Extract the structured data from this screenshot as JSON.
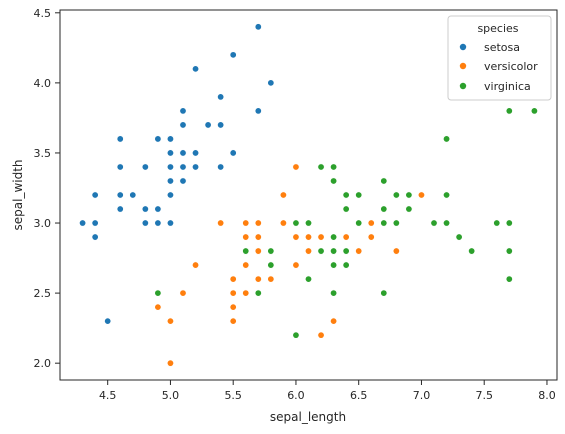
{
  "chart_data": {
    "type": "scatter",
    "title": "",
    "xlabel": "sepal_length",
    "ylabel": "sepal_width",
    "xlim": [
      4.12,
      8.08
    ],
    "ylim": [
      1.88,
      4.52
    ],
    "xticks": [
      "4.5",
      "5.0",
      "5.5",
      "6.0",
      "6.5",
      "7.0",
      "7.5",
      "8.0"
    ],
    "yticks": [
      "2.0",
      "2.5",
      "3.0",
      "3.5",
      "4.0",
      "4.5"
    ],
    "grid": false,
    "legend": {
      "title": "species",
      "placement": "top-right"
    },
    "series": [
      {
        "name": "setosa",
        "color": "#1f77b4",
        "points": [
          [
            4.3,
            3.0
          ],
          [
            4.4,
            2.9
          ],
          [
            4.4,
            3.0
          ],
          [
            4.4,
            3.2
          ],
          [
            4.5,
            2.3
          ],
          [
            4.6,
            3.1
          ],
          [
            4.6,
            3.2
          ],
          [
            4.6,
            3.4
          ],
          [
            4.6,
            3.6
          ],
          [
            4.7,
            3.2
          ],
          [
            4.8,
            3.0
          ],
          [
            4.8,
            3.1
          ],
          [
            4.8,
            3.4
          ],
          [
            4.9,
            3.0
          ],
          [
            4.9,
            3.1
          ],
          [
            4.9,
            3.6
          ],
          [
            5.0,
            3.0
          ],
          [
            5.0,
            3.2
          ],
          [
            5.0,
            3.3
          ],
          [
            5.0,
            3.4
          ],
          [
            5.0,
            3.5
          ],
          [
            5.0,
            3.6
          ],
          [
            5.1,
            3.3
          ],
          [
            5.1,
            3.4
          ],
          [
            5.1,
            3.5
          ],
          [
            5.1,
            3.7
          ],
          [
            5.1,
            3.8
          ],
          [
            5.2,
            3.4
          ],
          [
            5.2,
            3.5
          ],
          [
            5.2,
            4.1
          ],
          [
            5.3,
            3.7
          ],
          [
            5.4,
            3.4
          ],
          [
            5.4,
            3.7
          ],
          [
            5.4,
            3.9
          ],
          [
            5.5,
            3.5
          ],
          [
            5.5,
            4.2
          ],
          [
            5.7,
            3.8
          ],
          [
            5.7,
            4.4
          ],
          [
            5.8,
            4.0
          ]
        ]
      },
      {
        "name": "versicolor",
        "color": "#ff7f0e",
        "points": [
          [
            4.9,
            2.4
          ],
          [
            5.0,
            2.0
          ],
          [
            5.0,
            2.3
          ],
          [
            5.1,
            2.5
          ],
          [
            5.2,
            2.7
          ],
          [
            5.4,
            3.0
          ],
          [
            5.5,
            2.3
          ],
          [
            5.5,
            2.4
          ],
          [
            5.5,
            2.5
          ],
          [
            5.5,
            2.6
          ],
          [
            5.6,
            2.5
          ],
          [
            5.6,
            2.7
          ],
          [
            5.6,
            2.9
          ],
          [
            5.6,
            3.0
          ],
          [
            5.7,
            2.6
          ],
          [
            5.7,
            2.8
          ],
          [
            5.7,
            2.9
          ],
          [
            5.7,
            3.0
          ],
          [
            5.8,
            2.6
          ],
          [
            5.8,
            2.7
          ],
          [
            5.9,
            3.0
          ],
          [
            5.9,
            3.2
          ],
          [
            6.0,
            2.2
          ],
          [
            6.0,
            2.7
          ],
          [
            6.0,
            2.9
          ],
          [
            6.0,
            3.4
          ],
          [
            6.1,
            2.8
          ],
          [
            6.1,
            2.9
          ],
          [
            6.1,
            3.0
          ],
          [
            6.2,
            2.2
          ],
          [
            6.2,
            2.9
          ],
          [
            6.3,
            2.3
          ],
          [
            6.3,
            2.5
          ],
          [
            6.3,
            3.3
          ],
          [
            6.4,
            2.9
          ],
          [
            6.4,
            3.2
          ],
          [
            6.5,
            2.8
          ],
          [
            6.6,
            2.9
          ],
          [
            6.6,
            3.0
          ],
          [
            6.7,
            3.0
          ],
          [
            6.7,
            3.1
          ],
          [
            6.8,
            2.8
          ],
          [
            6.9,
            3.1
          ],
          [
            7.0,
            3.2
          ]
        ]
      },
      {
        "name": "virginica",
        "color": "#2ca02c",
        "points": [
          [
            4.9,
            2.5
          ],
          [
            5.6,
            2.8
          ],
          [
            5.7,
            2.5
          ],
          [
            5.8,
            2.7
          ],
          [
            5.8,
            2.8
          ],
          [
            6.0,
            2.2
          ],
          [
            6.0,
            3.0
          ],
          [
            6.1,
            2.6
          ],
          [
            6.1,
            3.0
          ],
          [
            6.2,
            2.8
          ],
          [
            6.2,
            3.4
          ],
          [
            6.3,
            2.5
          ],
          [
            6.3,
            2.7
          ],
          [
            6.3,
            2.8
          ],
          [
            6.3,
            2.9
          ],
          [
            6.3,
            3.3
          ],
          [
            6.3,
            3.4
          ],
          [
            6.4,
            2.7
          ],
          [
            6.4,
            2.8
          ],
          [
            6.4,
            3.1
          ],
          [
            6.4,
            3.2
          ],
          [
            6.5,
            3.0
          ],
          [
            6.5,
            3.2
          ],
          [
            6.7,
            2.5
          ],
          [
            6.7,
            3.0
          ],
          [
            6.7,
            3.1
          ],
          [
            6.7,
            3.3
          ],
          [
            6.8,
            3.0
          ],
          [
            6.8,
            3.2
          ],
          [
            6.9,
            3.1
          ],
          [
            6.9,
            3.2
          ],
          [
            7.1,
            3.0
          ],
          [
            7.2,
            3.0
          ],
          [
            7.2,
            3.2
          ],
          [
            7.2,
            3.6
          ],
          [
            7.3,
            2.9
          ],
          [
            7.4,
            2.8
          ],
          [
            7.6,
            3.0
          ],
          [
            7.7,
            2.6
          ],
          [
            7.7,
            2.8
          ],
          [
            7.7,
            3.0
          ],
          [
            7.7,
            3.8
          ],
          [
            7.9,
            3.8
          ]
        ]
      }
    ]
  }
}
